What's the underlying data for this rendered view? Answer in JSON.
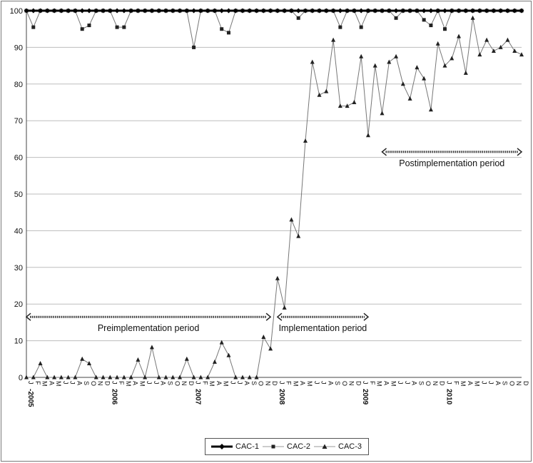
{
  "chart_data": {
    "type": "line",
    "ylim": [
      0,
      100
    ],
    "yticks": [
      0,
      10,
      20,
      30,
      40,
      50,
      60,
      70,
      80,
      90,
      100
    ],
    "grid": "horizontal",
    "x_tick_labels": [
      "J",
      "F",
      "M",
      "A",
      "M",
      "J",
      "J",
      "A",
      "S",
      "O",
      "N",
      "D",
      "J",
      "F",
      "M",
      "A",
      "M",
      "J",
      "J",
      "A",
      "S",
      "O",
      "N",
      "D",
      "J",
      "F",
      "M",
      "A",
      "M",
      "J",
      "J",
      "A",
      "S",
      "O",
      "N",
      "D",
      "J",
      "F",
      "M",
      "A",
      "M",
      "J",
      "J",
      "A",
      "S",
      "O",
      "N",
      "D",
      "J",
      "F",
      "M",
      "A",
      "M",
      "J",
      "J",
      "A",
      "S",
      "O",
      "N",
      "D",
      "J",
      "F",
      "M",
      "A",
      "M",
      "J",
      "J",
      "A",
      "S",
      "O",
      "N",
      "D"
    ],
    "year_labels": [
      {
        "index": 0,
        "text": "-2005"
      },
      {
        "index": 12,
        "text": "2006"
      },
      {
        "index": 24,
        "text": "2007"
      },
      {
        "index": 36,
        "text": "2008"
      },
      {
        "index": 48,
        "text": "2009"
      },
      {
        "index": 60,
        "text": "2010"
      }
    ],
    "series": [
      {
        "name": "CAC-1",
        "color": "#000000",
        "marker": "diamond",
        "values": [
          100,
          100,
          100,
          100,
          100,
          100,
          100,
          100,
          100,
          100,
          100,
          100,
          100,
          100,
          100,
          100,
          100,
          100,
          100,
          100,
          100,
          100,
          100,
          100,
          100,
          100,
          100,
          100,
          100,
          100,
          100,
          100,
          100,
          100,
          100,
          100,
          100,
          100,
          100,
          100,
          100,
          100,
          100,
          100,
          100,
          100,
          100,
          100,
          100,
          100,
          100,
          100,
          100,
          100,
          100,
          100,
          100,
          100,
          100,
          100,
          100,
          100,
          100,
          100,
          100,
          100,
          100,
          100,
          100,
          100,
          100,
          100
        ]
      },
      {
        "name": "CAC-2",
        "color": "#333333",
        "marker": "square",
        "values": [
          100,
          95.5,
          100,
          100,
          100,
          100,
          100,
          100,
          95,
          96,
          100,
          100,
          100,
          95.5,
          95.5,
          100,
          100,
          100,
          100,
          100,
          100,
          100,
          100,
          100,
          90,
          100,
          100,
          100,
          95,
          94,
          100,
          100,
          100,
          100,
          100,
          100,
          100,
          100,
          100,
          98,
          100,
          100,
          100,
          100,
          100,
          95.5,
          100,
          100,
          95.5,
          100,
          100,
          100,
          100,
          98,
          100,
          100,
          100,
          97.5,
          96,
          100,
          95,
          100,
          100,
          100,
          100,
          100,
          100,
          100,
          100,
          100,
          100,
          100
        ]
      },
      {
        "name": "CAC-3",
        "color": "#555555",
        "marker": "triangle",
        "values": [
          0,
          0,
          3.8,
          0,
          0,
          0,
          0,
          0,
          5,
          3.8,
          0,
          0,
          0,
          0,
          0,
          0,
          4.8,
          0,
          8.2,
          0,
          0,
          0,
          0,
          5,
          0,
          0,
          0,
          4.2,
          9.5,
          6,
          0,
          0,
          0,
          0,
          11,
          7.8,
          27,
          19,
          43,
          38.5,
          64.5,
          86,
          77,
          78,
          92,
          74,
          74,
          75,
          87.5,
          66,
          85,
          72,
          86,
          87.5,
          80,
          76,
          84.5,
          81.5,
          73,
          91,
          85,
          87,
          93,
          83,
          98,
          88,
          92,
          89,
          90,
          92,
          89,
          88
        ]
      }
    ],
    "annotations": [
      {
        "text": "Preimplementation period",
        "from_index": 0,
        "to_index": 35,
        "y": 16.5
      },
      {
        "text": "Implementation period",
        "from_index": 36,
        "to_index": 49,
        "y": 16.5
      },
      {
        "text": "Postimplementation period",
        "from_index": 51,
        "to_index": 71,
        "y": 61.5
      }
    ],
    "legend_position": "bottom-center"
  }
}
